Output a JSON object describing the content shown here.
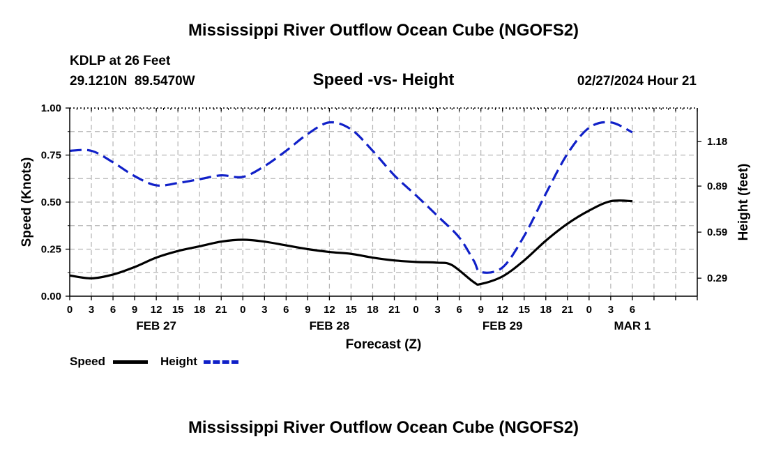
{
  "page": {
    "title": "Mississippi River Outflow Ocean Cube (NGOFS2)",
    "bottom_title": "Mississippi River Outflow Ocean Cube (NGOFS2)",
    "station": "KDLP at 26 Feet",
    "coords": "29.1210N  89.5470W",
    "subtitle": "Speed -vs- Height",
    "datetime": "02/27/2024 Hour 21"
  },
  "legend": {
    "speed_label": "Speed",
    "height_label": "Height"
  },
  "colors": {
    "speed": "#000000",
    "height": "#1020c8",
    "grid": "#b4b4b4"
  },
  "chart_data": {
    "type": "line",
    "title": "Speed -vs- Height",
    "xlabel": "Forecast (Z)",
    "ylabel": "Speed (Knots)",
    "y2label": "Height (feet)",
    "xlim": [
      0,
      87
    ],
    "ylim": [
      0,
      1.0
    ],
    "y2lim": [
      0.1726,
      1.3988
    ],
    "grid": true,
    "legend_position": "bottom-left",
    "x_ticks": [
      0,
      3,
      6,
      9,
      12,
      15,
      18,
      21,
      24,
      27,
      30,
      33,
      36,
      39,
      42,
      45,
      48,
      51,
      54,
      57,
      60,
      63,
      66,
      69,
      72,
      75,
      78,
      81,
      84,
      87
    ],
    "x_tick_labels": [
      "0",
      "3",
      "6",
      "9",
      "12",
      "15",
      "18",
      "21",
      "0",
      "3",
      "6",
      "9",
      "12",
      "15",
      "18",
      "21",
      "0",
      "3",
      "6",
      "9",
      "12",
      "15",
      "18",
      "21",
      "0",
      "3",
      "6"
    ],
    "x_tick_label_hours": [
      0,
      3,
      6,
      9,
      12,
      15,
      18,
      21,
      24,
      27,
      30,
      33,
      36,
      39,
      42,
      45,
      48,
      51,
      54,
      57,
      60,
      63,
      66,
      69,
      72,
      75,
      78
    ],
    "day_labels": [
      {
        "label": "FEB 27",
        "hour": 12
      },
      {
        "label": "FEB 28",
        "hour": 36
      },
      {
        "label": "FEB 29",
        "hour": 60
      },
      {
        "label": "MAR 1",
        "hour": 78
      }
    ],
    "y_ticks": [
      0.0,
      0.25,
      0.5,
      0.75,
      1.0
    ],
    "y_tick_labels": [
      "0.00",
      "0.25",
      "0.50",
      "0.75",
      "1.00"
    ],
    "y2_ticks": [
      0.29,
      0.59,
      0.89,
      1.18
    ],
    "y2_tick_labels": [
      "0.29",
      "0.59",
      "0.89",
      "1.18"
    ],
    "series": [
      {
        "name": "Speed",
        "axis": "left",
        "style": "solid",
        "x": [
          0,
          3,
          6,
          9,
          12,
          15,
          18,
          21,
          24,
          27,
          30,
          33,
          36,
          39,
          42,
          45,
          48,
          51,
          53,
          56,
          57,
          60,
          63,
          66,
          69,
          72,
          75,
          78
        ],
        "values": [
          0.11,
          0.095,
          0.115,
          0.155,
          0.205,
          0.24,
          0.265,
          0.29,
          0.3,
          0.29,
          0.27,
          0.25,
          0.235,
          0.225,
          0.205,
          0.19,
          0.182,
          0.178,
          0.165,
          0.075,
          0.065,
          0.105,
          0.19,
          0.295,
          0.385,
          0.455,
          0.505,
          0.505
        ]
      },
      {
        "name": "Height",
        "axis": "right",
        "style": "dashed",
        "x": [
          0,
          3,
          6,
          9,
          12,
          15,
          18,
          21,
          24,
          27,
          30,
          33,
          36,
          39,
          42,
          45,
          48,
          51,
          54,
          56,
          57,
          60,
          63,
          66,
          69,
          72,
          75,
          78
        ],
        "values": [
          1.12,
          1.12,
          1.045,
          0.955,
          0.895,
          0.91,
          0.935,
          0.96,
          0.95,
          1.02,
          1.12,
          1.23,
          1.305,
          1.26,
          1.12,
          0.96,
          0.83,
          0.695,
          0.555,
          0.405,
          0.33,
          0.36,
          0.565,
          0.84,
          1.1,
          1.27,
          1.305,
          1.24
        ]
      }
    ]
  }
}
